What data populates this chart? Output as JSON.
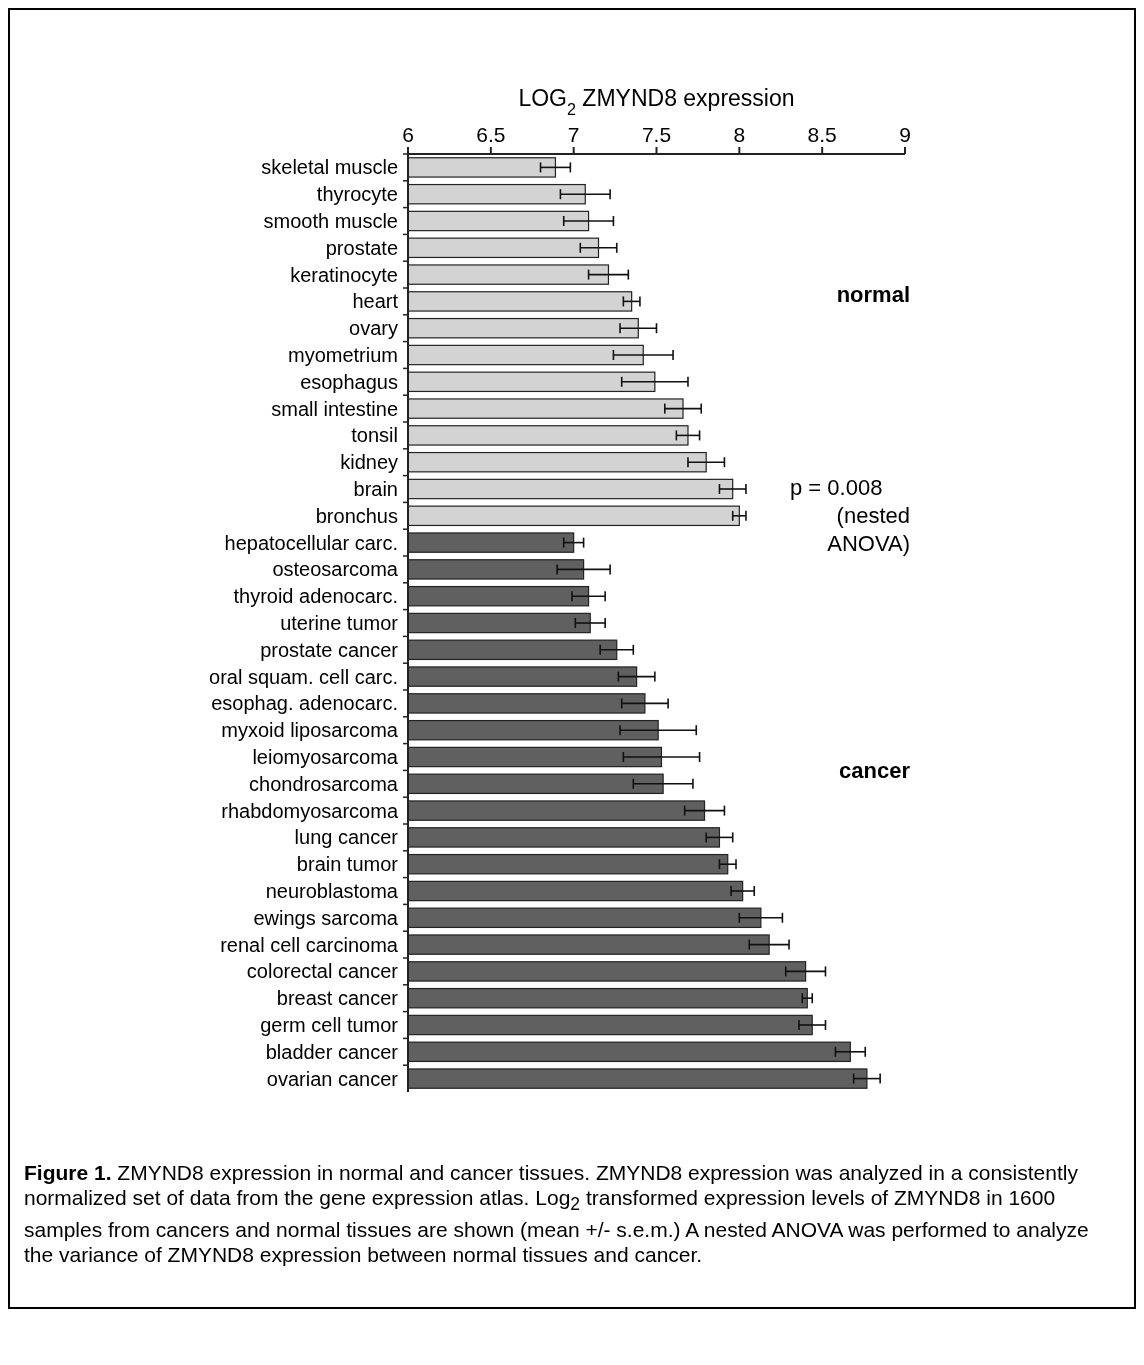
{
  "chart_data": {
    "type": "bar",
    "orientation": "horizontal",
    "xlabel": "LOG$_{2}$ ZMYND8 expression",
    "categories": [
      "skeletal muscle",
      "thyrocyte",
      "smooth muscle",
      "prostate",
      "keratinocyte",
      "heart",
      "ovary",
      "myometrium",
      "esophagus",
      "small intestine",
      "tonsil",
      "kidney",
      "brain",
      "bronchus",
      "hepatocellular carc.",
      "osteosarcoma",
      "thyroid adenocarc.",
      "uterine tumor",
      "prostate cancer",
      "oral squam. cell carc.",
      "esophag. adenocarc.",
      "myxoid liposarcoma",
      "leiomyosarcoma",
      "chondrosarcoma",
      "rhabdomyosarcoma",
      "lung cancer",
      "brain tumor",
      "neuroblastoma",
      "ewings sarcoma",
      "renal cell carcinoma",
      "colorectal cancer",
      "breast cancer",
      "germ cell tumor",
      "bladder cancer",
      "ovarian cancer"
    ],
    "values": [
      6.89,
      7.07,
      7.09,
      7.15,
      7.21,
      7.35,
      7.39,
      7.42,
      7.49,
      7.66,
      7.69,
      7.8,
      7.96,
      8.0,
      7.0,
      7.06,
      7.09,
      7.1,
      7.26,
      7.38,
      7.43,
      7.51,
      7.53,
      7.54,
      7.79,
      7.88,
      7.93,
      8.02,
      8.13,
      8.18,
      8.4,
      8.41,
      8.44,
      8.67,
      8.77
    ],
    "errors": [
      0.09,
      0.15,
      0.15,
      0.11,
      0.12,
      0.05,
      0.11,
      0.18,
      0.2,
      0.11,
      0.07,
      0.11,
      0.08,
      0.04,
      0.06,
      0.16,
      0.1,
      0.09,
      0.1,
      0.11,
      0.14,
      0.23,
      0.23,
      0.18,
      0.12,
      0.08,
      0.05,
      0.07,
      0.13,
      0.12,
      0.12,
      0.03,
      0.08,
      0.09,
      0.08
    ],
    "colors": [
      "#d3d3d3",
      "#d3d3d3",
      "#d3d3d3",
      "#d3d3d3",
      "#d3d3d3",
      "#d3d3d3",
      "#d3d3d3",
      "#d3d3d3",
      "#d3d3d3",
      "#d3d3d3",
      "#d3d3d3",
      "#d3d3d3",
      "#d3d3d3",
      "#d3d3d3",
      "#606060",
      "#606060",
      "#606060",
      "#606060",
      "#606060",
      "#606060",
      "#606060",
      "#606060",
      "#606060",
      "#606060",
      "#606060",
      "#606060",
      "#606060",
      "#606060",
      "#606060",
      "#606060",
      "#606060",
      "#606060",
      "#606060",
      "#606060",
      "#606060"
    ],
    "xlim": [
      6,
      9
    ],
    "xticks": [
      6,
      6.5,
      7,
      7.5,
      8,
      8.5,
      9
    ],
    "annotations": [
      "normal",
      "p = 0.008\n(nested\nANOVA)",
      "cancer",
      "Figure 1.  ZMYND8 expression in normal and cancer tissues.  ZMYND8 expression was analyzed in a consistently normalized set of data from the gene expression atlas.  Log$_{2}$ transformed expression levels of ZMYND8 in 1600 samples from cancers and normal tissues are shown (mean +/- s.e.m.)  A nested ANOVA was performed to analyze the variance of ZMYND8 expression between normal tissues and cancer."
    ]
  }
}
